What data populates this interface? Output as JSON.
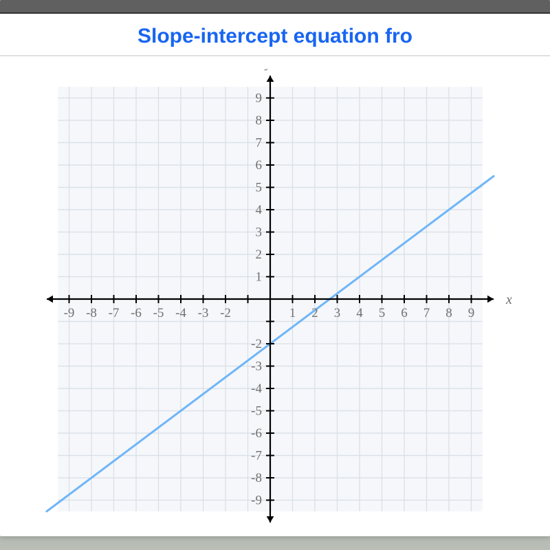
{
  "header": {
    "title": "Slope-intercept equation fro"
  },
  "graph": {
    "type": "line",
    "x_axis_label": "x",
    "y_axis_label": "y",
    "xlim": [
      -10,
      10
    ],
    "ylim": [
      -10,
      10
    ],
    "xticks": [
      -9,
      -8,
      -7,
      -6,
      -5,
      -4,
      -3,
      -2,
      -1,
      1,
      2,
      3,
      4,
      5,
      6,
      7,
      8,
      9
    ],
    "yticks": [
      -9,
      -8,
      -7,
      -6,
      -5,
      -4,
      -3,
      -2,
      -1,
      1,
      2,
      3,
      4,
      5,
      6,
      7,
      8,
      9
    ],
    "xtick_labels_shown": [
      -9,
      -8,
      -7,
      -6,
      -5,
      -4,
      -3,
      -2,
      1,
      2,
      3,
      4,
      5,
      6,
      7,
      8,
      9
    ],
    "ytick_labels_shown": [
      -9,
      -8,
      -7,
      -6,
      -5,
      -4,
      -3,
      -2,
      1,
      2,
      3,
      4,
      5,
      6,
      7,
      8,
      9
    ],
    "grid_color": "#d8dfe6",
    "grid_bg": "#f5f7fa",
    "axis_color": "#000000",
    "tick_color": "#000000",
    "tick_label_color": "#707070",
    "tick_fontsize": 19,
    "axis_label_color": "#707070",
    "axis_label_fontsize": 20,
    "line_color": "#6fb6f7",
    "line_width": 3,
    "line_points_world": [
      [
        -10,
        -9.5
      ],
      [
        10,
        5.5
      ]
    ],
    "slope": 0.75,
    "y_intercept": -2
  }
}
